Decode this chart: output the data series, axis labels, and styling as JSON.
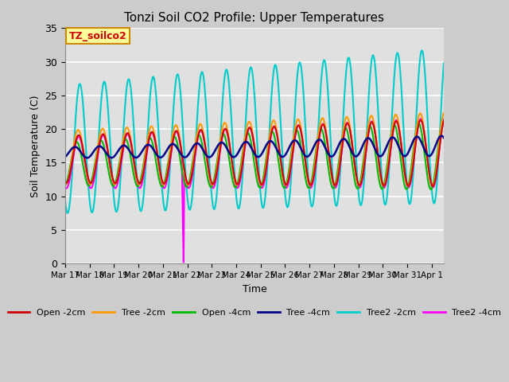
{
  "title": "Tonzi Soil CO2 Profile: Upper Temperatures",
  "xlabel": "Time",
  "ylabel": "Soil Temperature (C)",
  "ylim": [
    0,
    35
  ],
  "xlim_days": [
    0,
    15.5
  ],
  "bg_color": "#cccccc",
  "plot_bg_color": "#e0e0e0",
  "grid_color": "#ffffff",
  "annotation_text": "TZ_soilco2",
  "annotation_bg": "#ffff99",
  "annotation_border": "#cc8800",
  "series": [
    {
      "label": "Open -2cm",
      "color": "#cc0000",
      "lw": 1.5
    },
    {
      "label": "Tree -2cm",
      "color": "#ff9900",
      "lw": 1.5
    },
    {
      "label": "Open -4cm",
      "color": "#00bb00",
      "lw": 1.5
    },
    {
      "label": "Tree -4cm",
      "color": "#000088",
      "lw": 1.8
    },
    {
      "label": "Tree2 -2cm",
      "color": "#00cccc",
      "lw": 1.5
    },
    {
      "label": "Tree2 -4cm",
      "color": "#ff00ff",
      "lw": 1.5
    }
  ],
  "xtick_labels": [
    "Mar 17",
    "Mar 18",
    "Mar 19",
    "Mar 20",
    "Mar 21",
    "Mar 22",
    "Mar 23",
    "Mar 24",
    "Mar 25",
    "Mar 26",
    "Mar 27",
    "Mar 28",
    "Mar 29",
    "Mar 30",
    "Mar 31",
    "Apr 1"
  ]
}
